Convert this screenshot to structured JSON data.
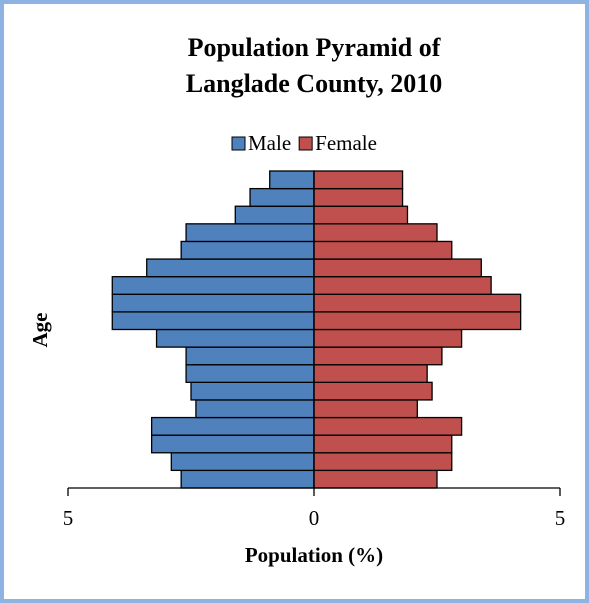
{
  "chart_data": {
    "type": "pyramid",
    "title": "Population Pyramid of",
    "subtitle": "Langlade County, 2010",
    "xlabel": "Population (%)",
    "ylabel": "Age",
    "categories": [
      null,
      null,
      null,
      null,
      null,
      null,
      null,
      null,
      null,
      null,
      null,
      null,
      null,
      null,
      null,
      null,
      null,
      null
    ],
    "series": [
      {
        "name": "Male",
        "color": "#4f81bd",
        "values": [
          -2.7,
          -2.9,
          -3.3,
          -3.3,
          -2.4,
          -2.5,
          -2.6,
          -2.6,
          -3.2,
          -4.1,
          -4.1,
          -4.1,
          -3.4,
          -2.7,
          -2.6,
          -1.6,
          -1.3,
          -0.9
        ]
      },
      {
        "name": "Female",
        "color": "#c0504d",
        "values": [
          2.5,
          2.8,
          2.8,
          3.0,
          2.1,
          2.4,
          2.3,
          2.6,
          3.0,
          4.2,
          4.2,
          3.6,
          3.4,
          2.8,
          2.5,
          1.9,
          1.8,
          1.8
        ]
      }
    ],
    "xlim": [
      -5,
      5
    ],
    "xticks": [
      {
        "value": -5,
        "label": "5"
      },
      0,
      5
    ]
  }
}
